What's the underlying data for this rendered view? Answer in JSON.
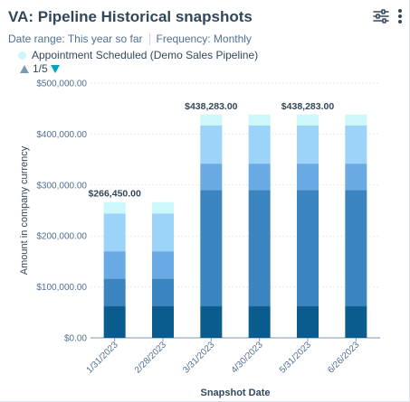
{
  "header": {
    "title": "VA: Pipeline Historical snapshots",
    "filter_icon": "sliders-icon",
    "more_icon": "vertical-ellipsis-icon"
  },
  "meta": {
    "date_range": "Date range: This year so far",
    "frequency": "Frequency: Monthly"
  },
  "legend": {
    "item": "Appointment Scheduled (Demo Sales Pipeline)",
    "color": "#ccf5fc"
  },
  "pager": {
    "text": "1/5",
    "prev_color": "#7c98b6",
    "next_color": "#00a4bd"
  },
  "colors": {
    "series": [
      "#0b5c8e",
      "#3a85bf",
      "#6aaae4",
      "#9cd3f8",
      "#ccf8fc"
    ],
    "grid": "#e5ebf1",
    "axis": "#7c98b6"
  },
  "chart_data": {
    "type": "bar",
    "stacked": true,
    "categories": [
      "1/31/2023",
      "2/28/2023",
      "3/31/2023",
      "4/30/2023",
      "5/31/2023",
      "6/26/2023"
    ],
    "series": [
      {
        "values": [
          62000,
          62000,
          62000,
          62000,
          62000,
          62000
        ]
      },
      {
        "values": [
          54000,
          54000,
          228000,
          228000,
          228000,
          228000
        ]
      },
      {
        "values": [
          54000,
          54000,
          52000,
          52000,
          52000,
          52000
        ]
      },
      {
        "values": [
          74000,
          74000,
          75000,
          75000,
          75000,
          75000
        ]
      },
      {
        "values": [
          22450,
          22450,
          21283,
          21283,
          21283,
          21283
        ]
      }
    ],
    "total_labels": [
      "$266,450.00",
      "",
      "$438,283.00",
      "",
      "$438,283.00",
      ""
    ],
    "y_ticks": [
      "$0.00",
      "$100,000.00",
      "$200,000.00",
      "$300,000.00",
      "$400,000.00",
      "$500,000.00"
    ],
    "ylim": [
      0,
      500000
    ],
    "xlabel": "Snapshot Date",
    "ylabel": "Amount in company currency",
    "grid": true
  }
}
